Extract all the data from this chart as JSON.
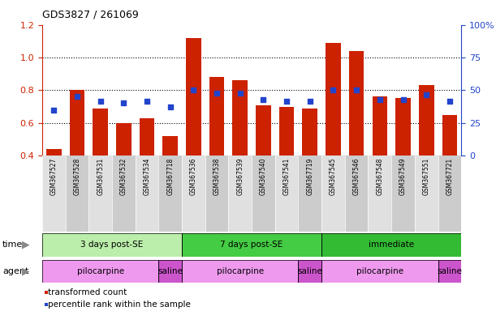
{
  "title": "GDS3827 / 261069",
  "samples": [
    "GSM367527",
    "GSM367528",
    "GSM367531",
    "GSM367532",
    "GSM367534",
    "GSM367718",
    "GSM367536",
    "GSM367538",
    "GSM367539",
    "GSM367540",
    "GSM367541",
    "GSM367719",
    "GSM367545",
    "GSM367546",
    "GSM367548",
    "GSM367549",
    "GSM367551",
    "GSM367721"
  ],
  "transformed_count": [
    0.44,
    0.8,
    0.69,
    0.6,
    0.63,
    0.52,
    1.12,
    0.88,
    0.86,
    0.71,
    0.7,
    0.69,
    1.09,
    1.04,
    0.76,
    0.75,
    0.83,
    0.65
  ],
  "percentile_rank_left": [
    0.68,
    0.76,
    0.73,
    0.72,
    0.73,
    0.7,
    0.8,
    0.78,
    0.78,
    0.74,
    0.73,
    0.73,
    0.8,
    0.8,
    0.74,
    0.74,
    0.77,
    0.73
  ],
  "bar_color": "#cc2200",
  "dot_color": "#2244cc",
  "ylim_left": [
    0.4,
    1.2
  ],
  "ylim_right": [
    0,
    100
  ],
  "yticks_left": [
    0.4,
    0.6,
    0.8,
    1.0,
    1.2
  ],
  "yticks_right": [
    0,
    25,
    50,
    75,
    100
  ],
  "ytick_labels_right": [
    "0",
    "25",
    "50",
    "75",
    "100%"
  ],
  "hlines": [
    0.6,
    0.8,
    1.0
  ],
  "time_groups": [
    {
      "label": "3 days post-SE",
      "start": 0,
      "end": 6,
      "color": "#bbeeaa"
    },
    {
      "label": "7 days post-SE",
      "start": 6,
      "end": 12,
      "color": "#44cc44"
    },
    {
      "label": "immediate",
      "start": 12,
      "end": 18,
      "color": "#33bb33"
    }
  ],
  "agent_groups": [
    {
      "label": "pilocarpine",
      "start": 0,
      "end": 5,
      "color": "#ee99ee"
    },
    {
      "label": "saline",
      "start": 5,
      "end": 6,
      "color": "#cc55cc"
    },
    {
      "label": "pilocarpine",
      "start": 6,
      "end": 11,
      "color": "#ee99ee"
    },
    {
      "label": "saline",
      "start": 11,
      "end": 12,
      "color": "#cc55cc"
    },
    {
      "label": "pilocarpine",
      "start": 12,
      "end": 17,
      "color": "#ee99ee"
    },
    {
      "label": "saline",
      "start": 17,
      "end": 18,
      "color": "#cc55cc"
    }
  ],
  "legend_bar_label": "transformed count",
  "legend_dot_label": "percentile rank within the sample",
  "time_label": "time",
  "agent_label": "agent",
  "background_color": "#ffffff",
  "tick_label_color_left": "#cc2200",
  "tick_label_color_right": "#2244cc",
  "bar_width": 0.65,
  "sample_bg_even": "#e0e0e0",
  "sample_bg_odd": "#cccccc"
}
